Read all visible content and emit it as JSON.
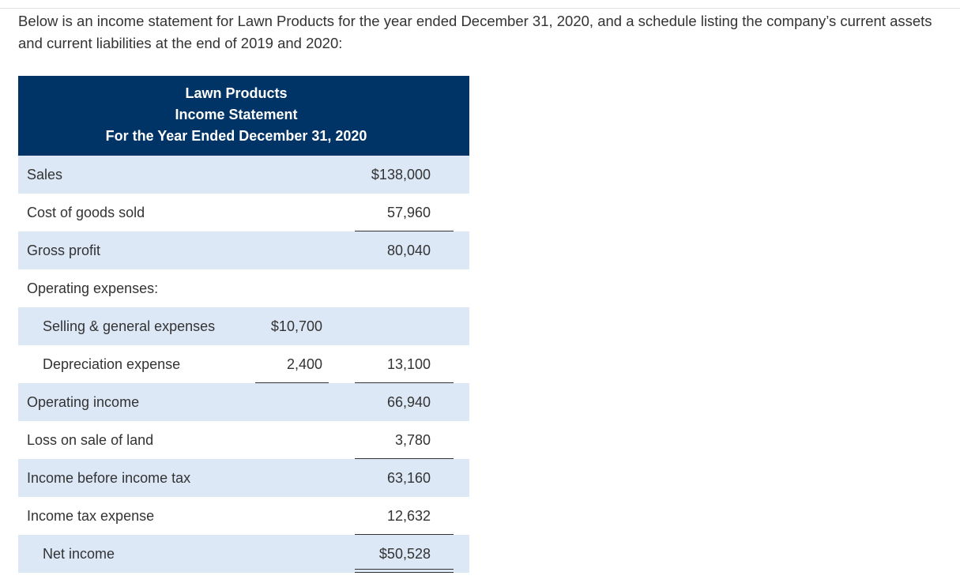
{
  "intro_text": "Below is an income statement for Lawn Products for the year ended December 31, 2020, and a schedule listing the company’s current assets and current liabilities at the end of 2019 and 2020:",
  "statement": {
    "company": "Lawn Products",
    "title": "Income Statement",
    "period": "For the Year Ended December 31, 2020",
    "rows": [
      {
        "label": "Sales",
        "mid": "",
        "right": "$138,000"
      },
      {
        "label": "Cost of goods sold",
        "mid": "",
        "right": "57,960"
      },
      {
        "label": "Gross profit",
        "mid": "",
        "right": "80,040"
      },
      {
        "label": "Operating expenses:",
        "mid": "",
        "right": ""
      },
      {
        "label": "Selling & general expenses",
        "mid": "$10,700",
        "right": ""
      },
      {
        "label": "Depreciation expense",
        "mid": "2,400",
        "right": "13,100"
      },
      {
        "label": "Operating income",
        "mid": "",
        "right": "66,940"
      },
      {
        "label": "Loss on sale of land",
        "mid": "",
        "right": "3,780"
      },
      {
        "label": "Income before income tax",
        "mid": "",
        "right": "63,160"
      },
      {
        "label": "Income tax expense",
        "mid": "",
        "right": "12,632"
      },
      {
        "label": "Net income",
        "mid": "",
        "right": "$50,528"
      }
    ]
  },
  "colors": {
    "header_bg": "#003366",
    "row_shade": "#dde8f7",
    "text": "#333333"
  }
}
